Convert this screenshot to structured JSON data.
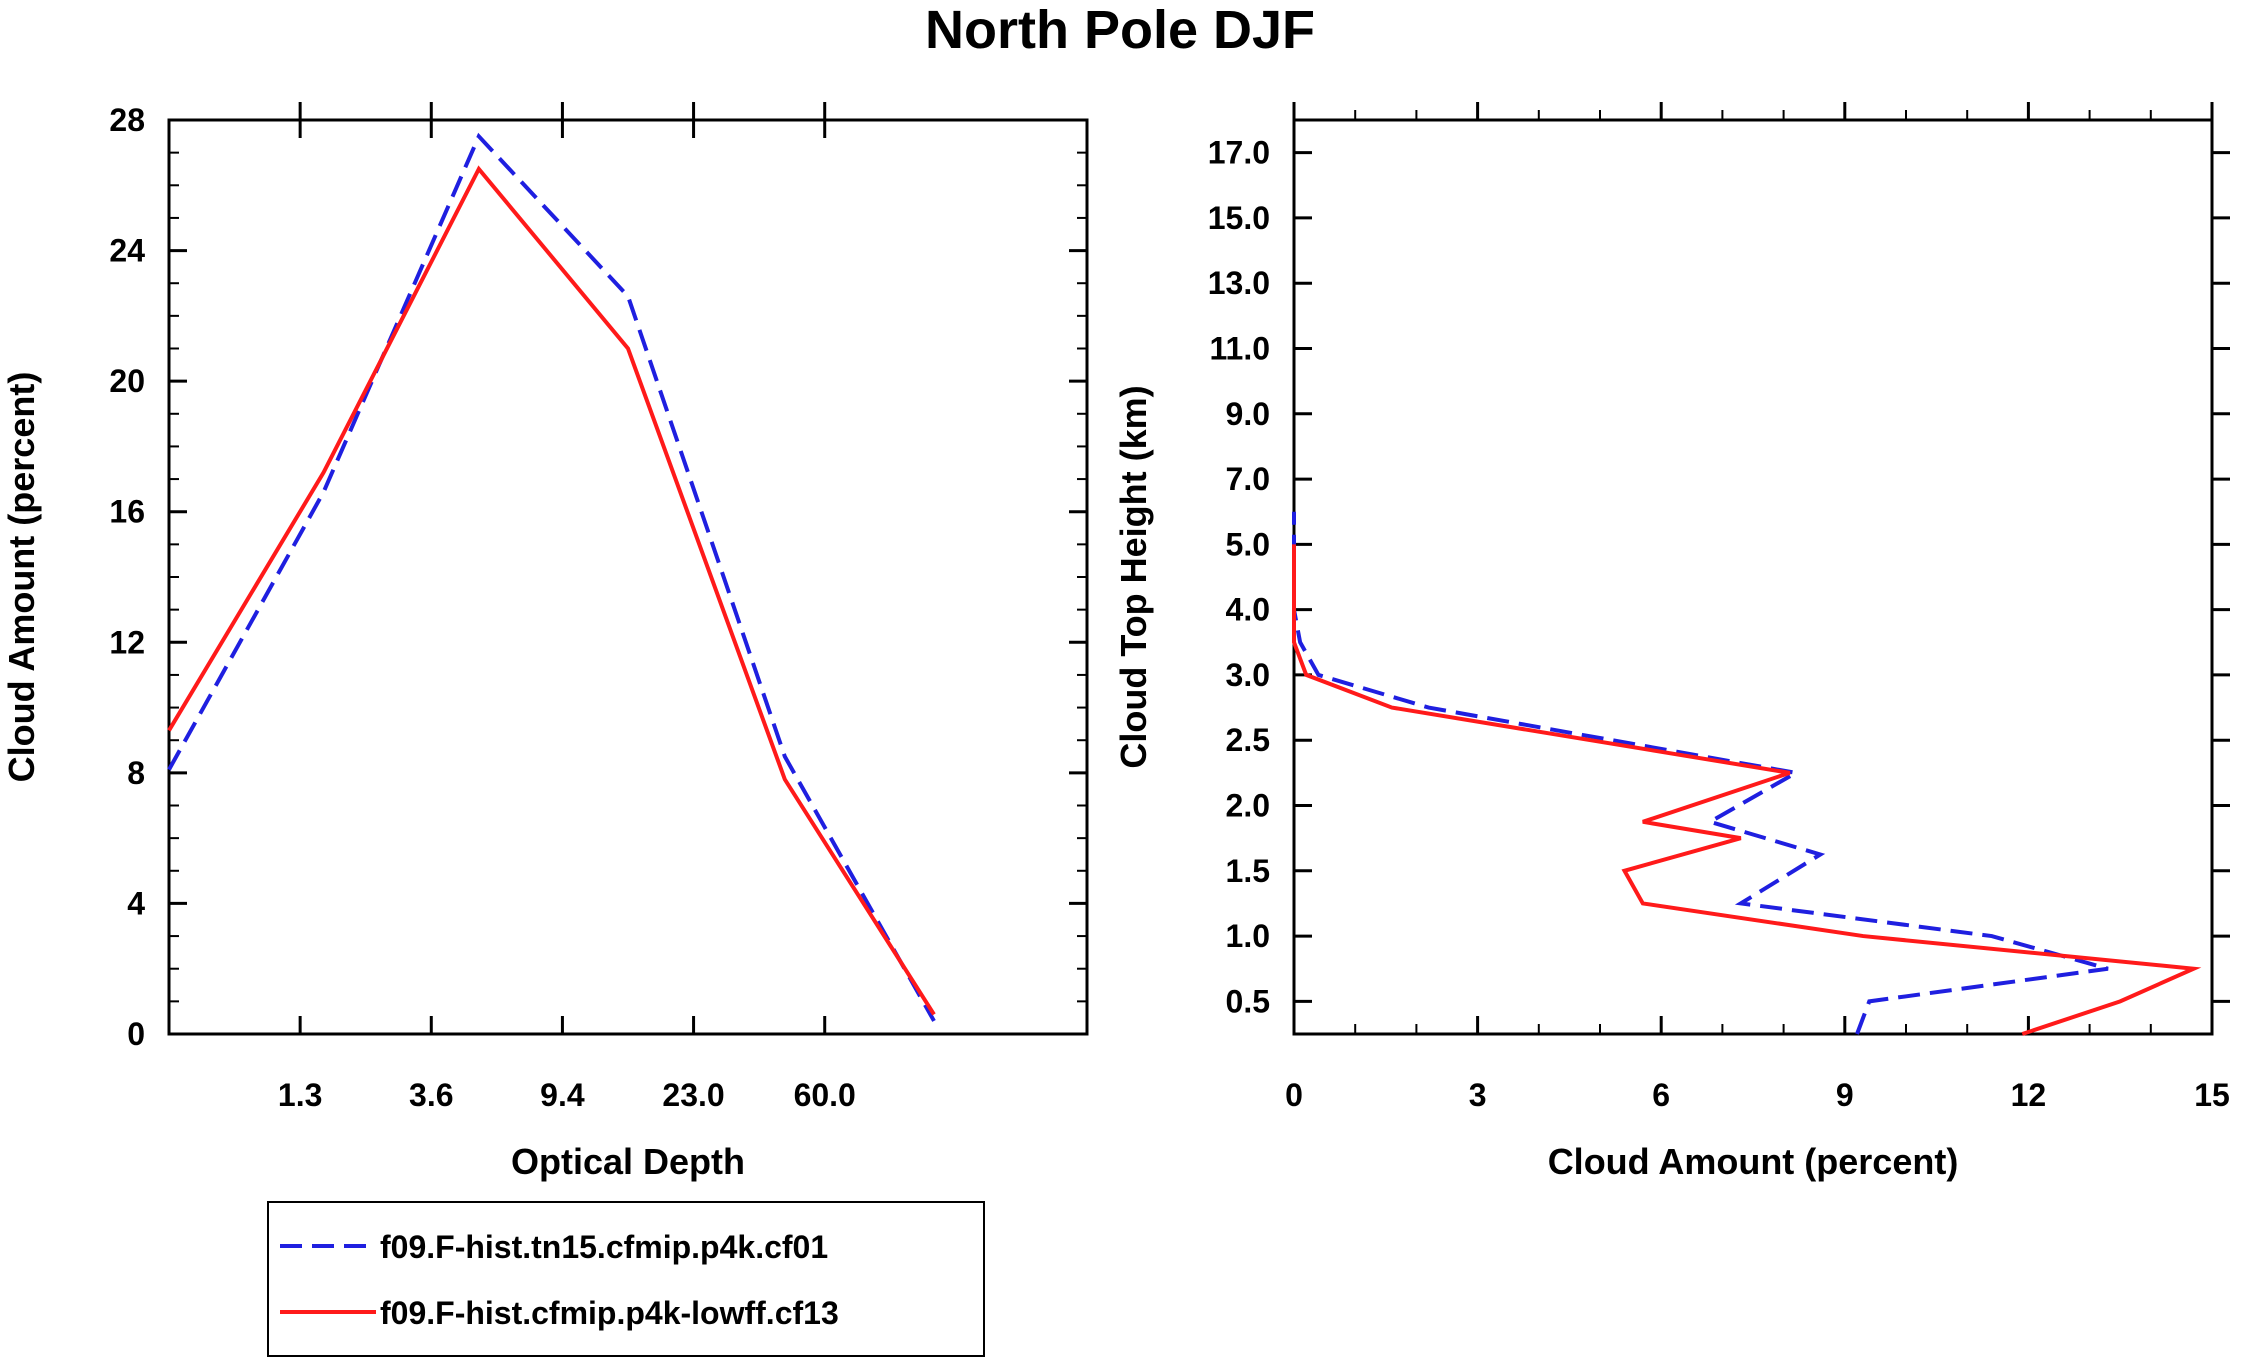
{
  "title": "North Pole DJF",
  "colors": {
    "series1": "#1f1fe0",
    "series2": "#ff1a1a",
    "axis": "#000000"
  },
  "legend": {
    "placement": "below-left",
    "entries": [
      {
        "label": "f09.F-hist.tn15.cfmip.p4k.cf01",
        "style": "dashed",
        "color": "#1f1fe0"
      },
      {
        "label": "f09.F-hist.cfmip.p4k-lowff.cf13",
        "style": "solid",
        "color": "#ff1a1a"
      }
    ]
  },
  "chart_data": [
    {
      "type": "line",
      "xlabel": "Optical Depth",
      "ylabel": "Cloud Amount (percent)",
      "ylim": [
        0,
        28
      ],
      "yticks": [
        0,
        4,
        8,
        12,
        16,
        20,
        24,
        28
      ],
      "x_bin_count": 7,
      "xtick_labels": [
        "1.3",
        "3.6",
        "9.4",
        "23.0",
        "60.0"
      ],
      "xtick_bin_edges": [
        1,
        2,
        3,
        4,
        5
      ],
      "x": [
        0,
        1.96,
        4.05,
        6.0,
        8.13,
        10.08,
        12.01
      ],
      "x_domain": [
        0,
        12
      ],
      "series": [
        {
          "name": "f09.F-hist.tn15.cfmip.p4k.cf01",
          "values": [
            8.1,
            16.6,
            27.5,
            22.6,
            8.5,
            0.4
          ],
          "x": [
            0.0,
            2.02,
            4.05,
            6.0,
            8.05,
            10.0
          ]
        },
        {
          "name": "f09.F-hist.cfmip.p4k-lowff.cf13",
          "values": [
            9.3,
            17.2,
            26.5,
            21.0,
            7.8,
            0.6
          ],
          "x": [
            0.0,
            2.02,
            4.05,
            6.0,
            8.05,
            10.0
          ]
        }
      ]
    },
    {
      "type": "line",
      "orientation": "horizontal-profile",
      "xlabel": "Cloud Amount (percent)",
      "ylabel": "Cloud Top Height (km)",
      "xlim": [
        0,
        15
      ],
      "xticks": [
        0,
        3,
        6,
        9,
        12,
        15
      ],
      "ytick_labels": [
        "0.5",
        "1.0",
        "1.5",
        "2.0",
        "2.5",
        "3.0",
        "4.0",
        "5.0",
        "7.0",
        "9.0",
        "11.0",
        "13.0",
        "15.0",
        "17.0"
      ],
      "y_level_count": 14,
      "levels": [
        0.0,
        0.5,
        1.0,
        1.5,
        2.0,
        2.5,
        3.0,
        3.5,
        4.0,
        4.5,
        5.0,
        5.5,
        6.0,
        6.5,
        7.0,
        7.5,
        8.0,
        8.5,
        9.0,
        9.5,
        10.0,
        10.5,
        11.0,
        11.5,
        12.0,
        12.5,
        13.0,
        13.5,
        14.0
      ],
      "series": [
        {
          "name": "f09.F-hist.tn15.cfmip.p4k.cf01",
          "values": [
            9.2,
            9.4,
            13.3,
            11.4,
            7.3,
            8.6,
            6.8,
            8.2,
            2.2,
            0.4,
            0.1,
            0.0,
            0.0,
            0.0,
            0.0
          ],
          "levels": [
            0.0,
            1.0,
            2.0,
            3.0,
            4.0,
            5.5,
            6.5,
            8.0,
            10.0,
            11.0,
            12.0,
            13.0,
            14.0,
            15.0,
            16.0
          ]
        },
        {
          "name": "f09.F-hist.cfmip.p4k-lowff.cf13",
          "values": [
            11.9,
            13.5,
            14.7,
            9.3,
            5.7,
            5.4,
            7.3,
            5.7,
            8.1,
            1.6,
            0.2,
            0.0,
            0.0,
            0.0,
            0.0
          ],
          "levels": [
            0.0,
            1.0,
            2.0,
            3.0,
            4.0,
            5.0,
            6.0,
            6.5,
            8.0,
            10.0,
            11.0,
            12.0,
            13.0,
            14.0,
            15.0
          ]
        }
      ]
    }
  ]
}
